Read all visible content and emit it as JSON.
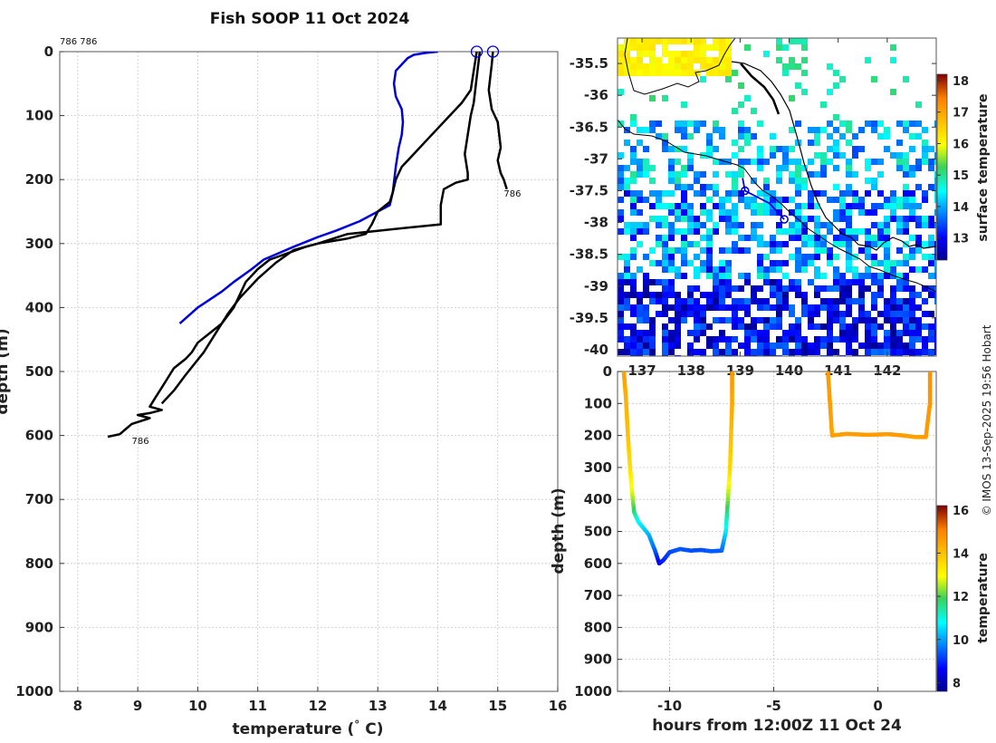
{
  "title": "Fish SOOP 11 Oct 2024",
  "credit": "© IMOS 13-Sep-2025 19:56 Hobart",
  "chart_data": [
    {
      "type": "line",
      "name": "temperature-profile",
      "xlabel": "temperature (° C)",
      "ylabel": "depth (m)",
      "xlim": [
        7.7,
        16.0
      ],
      "ylim": [
        1000,
        0
      ],
      "xticks": [
        "8",
        "9",
        "10",
        "11",
        "12",
        "13",
        "14",
        "15",
        "16"
      ],
      "yticks": [
        "0",
        "100",
        "200",
        "300",
        "400",
        "500",
        "600",
        "700",
        "800",
        "900",
        "1000"
      ],
      "grid": true,
      "annotations": [
        {
          "text": "786 786",
          "x": 7.7,
          "y": -20
        },
        {
          "text": "786",
          "x": 15.1,
          "y": 218
        },
        {
          "text": "786",
          "x": 8.9,
          "y": 605
        }
      ],
      "series": [
        {
          "name": "climatology",
          "color": "#0000dd",
          "points": [
            [
              14.0,
              0
            ],
            [
              13.8,
              2
            ],
            [
              13.6,
              5
            ],
            [
              13.5,
              10
            ],
            [
              13.4,
              20
            ],
            [
              13.3,
              30
            ],
            [
              13.27,
              50
            ],
            [
              13.3,
              70
            ],
            [
              13.4,
              90
            ],
            [
              13.42,
              110
            ],
            [
              13.4,
              130
            ],
            [
              13.35,
              150
            ],
            [
              13.3,
              180
            ],
            [
              13.25,
              220
            ],
            [
              13.2,
              240
            ],
            [
              13.0,
              250
            ],
            [
              12.7,
              265
            ],
            [
              12.3,
              280
            ],
            [
              12.0,
              290
            ],
            [
              11.6,
              305
            ],
            [
              11.1,
              325
            ],
            [
              10.9,
              340
            ],
            [
              10.6,
              360
            ],
            [
              10.4,
              375
            ],
            [
              10.0,
              400
            ],
            [
              9.7,
              425
            ]
          ]
        },
        {
          "name": "profile-a",
          "color": "#000000",
          "points": [
            [
              14.65,
              0
            ],
            [
              14.6,
              30
            ],
            [
              14.55,
              60
            ],
            [
              14.4,
              80
            ],
            [
              14.2,
              100
            ],
            [
              14.0,
              120
            ],
            [
              13.8,
              140
            ],
            [
              13.6,
              160
            ],
            [
              13.4,
              180
            ],
            [
              13.3,
              200
            ],
            [
              13.25,
              220
            ],
            [
              13.2,
              235
            ],
            [
              13.0,
              250
            ],
            [
              12.9,
              270
            ],
            [
              12.8,
              285
            ],
            [
              12.5,
              292
            ],
            [
              12.0,
              300
            ],
            [
              11.8,
              305
            ],
            [
              11.5,
              315
            ],
            [
              11.2,
              325
            ],
            [
              11.0,
              340
            ],
            [
              10.8,
              360
            ],
            [
              10.7,
              380
            ],
            [
              10.6,
              400
            ],
            [
              10.4,
              425
            ],
            [
              10.2,
              440
            ],
            [
              10.0,
              455
            ],
            [
              9.9,
              470
            ],
            [
              9.8,
              480
            ],
            [
              9.6,
              495
            ],
            [
              9.5,
              510
            ],
            [
              9.4,
              525
            ],
            [
              9.3,
              540
            ],
            [
              9.2,
              555
            ],
            [
              9.4,
              560
            ],
            [
              9.2,
              565
            ],
            [
              9.0,
              568
            ],
            [
              9.2,
              573
            ],
            [
              8.9,
              582
            ],
            [
              8.8,
              590
            ],
            [
              8.7,
              598
            ],
            [
              8.5,
              602
            ]
          ]
        },
        {
          "name": "profile-b",
          "color": "#000000",
          "points": [
            [
              14.92,
              0
            ],
            [
              14.9,
              20
            ],
            [
              14.85,
              60
            ],
            [
              14.9,
              90
            ],
            [
              15.0,
              110
            ],
            [
              15.05,
              150
            ],
            [
              15.0,
              170
            ],
            [
              15.05,
              190
            ],
            [
              15.1,
              200
            ],
            [
              15.15,
              215
            ]
          ]
        },
        {
          "name": "profile-c",
          "color": "#000000",
          "points": [
            [
              14.7,
              0
            ],
            [
              14.65,
              40
            ],
            [
              14.6,
              80
            ],
            [
              14.55,
              100
            ],
            [
              14.5,
              130
            ],
            [
              14.45,
              160
            ],
            [
              14.5,
              190
            ],
            [
              14.5,
              200
            ],
            [
              14.3,
              205
            ],
            [
              14.1,
              215
            ],
            [
              14.05,
              240
            ],
            [
              14.05,
              270
            ],
            [
              13.5,
              275
            ],
            [
              13.0,
              280
            ],
            [
              12.5,
              285
            ],
            [
              12.0,
              300
            ],
            [
              11.6,
              310
            ],
            [
              11.3,
              330
            ],
            [
              11.0,
              355
            ],
            [
              10.7,
              385
            ],
            [
              10.5,
              410
            ],
            [
              10.3,
              440
            ],
            [
              10.1,
              470
            ],
            [
              9.8,
              505
            ],
            [
              9.6,
              530
            ],
            [
              9.4,
              550
            ]
          ]
        }
      ],
      "markers": [
        [
          14.65,
          0
        ],
        [
          14.92,
          0
        ]
      ]
    },
    {
      "type": "heatmap",
      "name": "sst-map",
      "xlabel": "",
      "ylabel": "",
      "xlim": [
        136.5,
        143.0
      ],
      "ylim": [
        -40.1,
        -35.1
      ],
      "xticks": [
        "137",
        "138",
        "139",
        "140",
        "141",
        "142"
      ],
      "yticks": [
        "-35.5",
        "-36",
        "-36.5",
        "-37",
        "-37.5",
        "-38",
        "-38.5",
        "-39",
        "-39.5",
        "-40"
      ],
      "colorbar": {
        "label": "surface temperature",
        "min": 12.3,
        "max": 18.2,
        "ticks": [
          "13",
          "14",
          "15",
          "16",
          "17",
          "18"
        ]
      },
      "track": [
        [
          139.05,
          -37.3
        ],
        [
          139.1,
          -37.5
        ],
        [
          139.6,
          -37.7
        ],
        [
          139.9,
          -37.95
        ]
      ],
      "track_markers": [
        [
          139.1,
          -37.5
        ],
        [
          139.9,
          -37.95
        ]
      ]
    },
    {
      "type": "scatter",
      "name": "depth-time",
      "xlabel": "hours from 12:00Z 11 Oct 24",
      "ylabel": "depth (m)",
      "xlim": [
        -12.5,
        2.8
      ],
      "ylim": [
        1000,
        0
      ],
      "xticks": [
        "-10",
        "-5",
        "0"
      ],
      "yticks": [
        "0",
        "100",
        "200",
        "300",
        "400",
        "500",
        "600",
        "700",
        "800",
        "900",
        "1000"
      ],
      "colorbar": {
        "label": "temperature",
        "min": 7.6,
        "max": 16.2,
        "ticks": [
          "8",
          "10",
          "12",
          "14",
          "16"
        ]
      },
      "segments": [
        {
          "name": "dive-1",
          "points": [
            [
              -12.2,
              0,
              14.6
            ],
            [
              -12.1,
              80,
              14.3
            ],
            [
              -12.0,
              200,
              14.0
            ],
            [
              -11.9,
              300,
              13.5
            ],
            [
              -11.8,
              380,
              12.8
            ],
            [
              -11.7,
              440,
              11.8
            ],
            [
              -11.5,
              470,
              10.8
            ],
            [
              -11.0,
              510,
              10.2
            ],
            [
              -10.7,
              560,
              9.5
            ],
            [
              -10.5,
              600,
              8.6
            ],
            [
              -10.3,
              590,
              8.9
            ],
            [
              -10.0,
              565,
              9.2
            ],
            [
              -9.5,
              555,
              9.4
            ],
            [
              -9.0,
              560,
              9.3
            ],
            [
              -8.5,
              558,
              9.3
            ],
            [
              -8.0,
              562,
              9.4
            ],
            [
              -7.5,
              560,
              9.4
            ],
            [
              -7.3,
              500,
              10.5
            ],
            [
              -7.2,
              400,
              12.2
            ],
            [
              -7.1,
              300,
              13.6
            ],
            [
              -7.0,
              100,
              14.4
            ],
            [
              -7.0,
              0,
              14.7
            ]
          ]
        },
        {
          "name": "dive-2",
          "points": [
            [
              -2.4,
              0,
              14.6
            ],
            [
              -2.3,
              100,
              14.6
            ],
            [
              -2.2,
              200,
              14.5
            ],
            [
              -1.5,
              195,
              14.6
            ],
            [
              -0.5,
              198,
              14.6
            ],
            [
              0.5,
              196,
              14.6
            ],
            [
              1.2,
              200,
              14.6
            ],
            [
              1.8,
              205,
              14.5
            ],
            [
              2.3,
              205,
              14.6
            ],
            [
              2.5,
              100,
              14.7
            ],
            [
              2.5,
              0,
              14.8
            ]
          ]
        }
      ]
    }
  ]
}
